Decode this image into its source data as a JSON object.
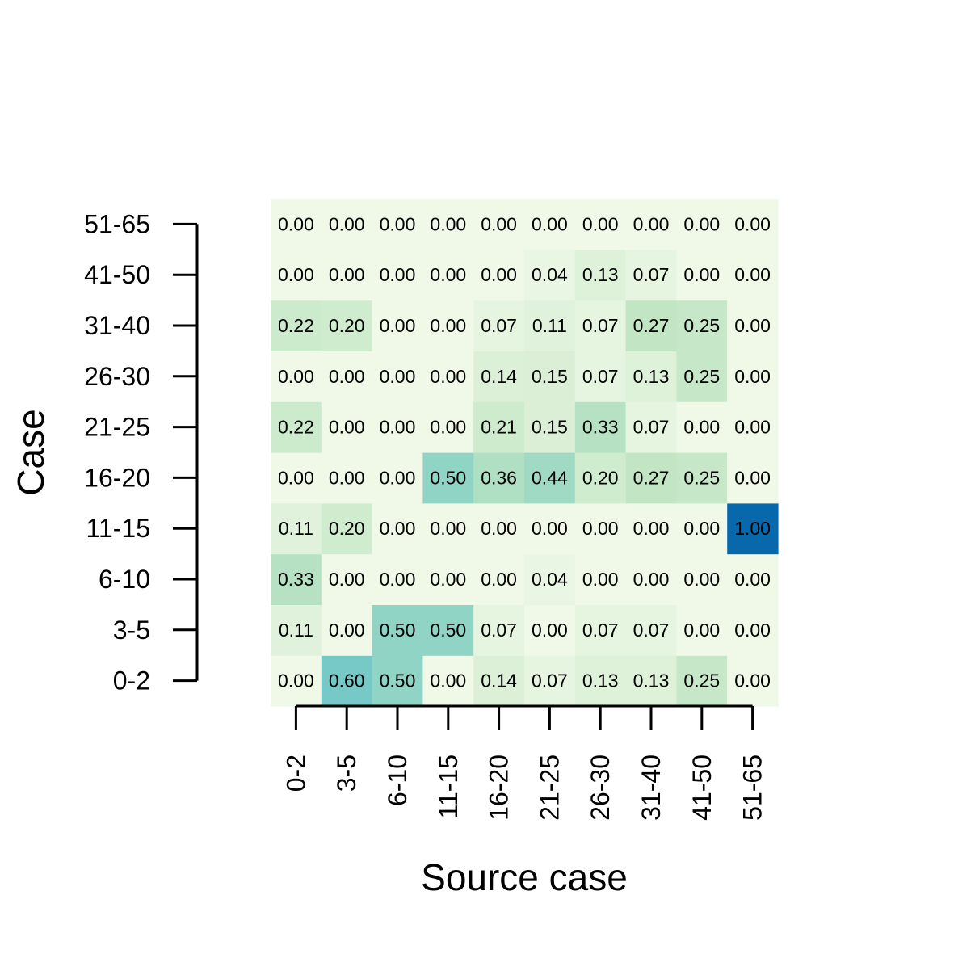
{
  "chart_data": {
    "type": "heatmap",
    "xlabel": "Source case",
    "ylabel": "Case",
    "x_categories": [
      "0-2",
      "3-5",
      "6-10",
      "11-15",
      "16-20",
      "21-25",
      "26-30",
      "31-40",
      "41-50",
      "51-65"
    ],
    "y_categories": [
      "0-2",
      "3-5",
      "6-10",
      "11-15",
      "16-20",
      "21-25",
      "26-30",
      "31-40",
      "41-50",
      "51-65"
    ],
    "value_range": [
      0,
      1
    ],
    "color_scale": {
      "low": "#f0f9e8",
      "stops": [
        "#f0f9e8",
        "#dcf0d8",
        "#bfe5c2",
        "#a3dbc5",
        "#7bccc4",
        "#63bdcc",
        "#43a2ca",
        "#0868ac"
      ],
      "high": "#0868ac"
    },
    "values": [
      [
        "0.00",
        "0.60",
        "0.50",
        "0.00",
        "0.14",
        "0.07",
        "0.13",
        "0.13",
        "0.25",
        "0.00"
      ],
      [
        "0.11",
        "0.00",
        "0.50",
        "0.50",
        "0.07",
        "0.00",
        "0.07",
        "0.07",
        "0.00",
        "0.00"
      ],
      [
        "0.33",
        "0.00",
        "0.00",
        "0.00",
        "0.00",
        "0.04",
        "0.00",
        "0.00",
        "0.00",
        "0.00"
      ],
      [
        "0.11",
        "0.20",
        "0.00",
        "0.00",
        "0.00",
        "0.00",
        "0.00",
        "0.00",
        "0.00",
        "1.00"
      ],
      [
        "0.00",
        "0.00",
        "0.00",
        "0.50",
        "0.36",
        "0.44",
        "0.20",
        "0.27",
        "0.25",
        "0.00"
      ],
      [
        "0.22",
        "0.00",
        "0.00",
        "0.00",
        "0.21",
        "0.15",
        "0.33",
        "0.07",
        "0.00",
        "0.00"
      ],
      [
        "0.00",
        "0.00",
        "0.00",
        "0.00",
        "0.14",
        "0.15",
        "0.07",
        "0.13",
        "0.25",
        "0.00"
      ],
      [
        "0.22",
        "0.20",
        "0.00",
        "0.00",
        "0.07",
        "0.11",
        "0.07",
        "0.27",
        "0.25",
        "0.00"
      ],
      [
        "0.00",
        "0.00",
        "0.00",
        "0.00",
        "0.00",
        "0.04",
        "0.13",
        "0.07",
        "0.00",
        "0.00"
      ],
      [
        "0.00",
        "0.00",
        "0.00",
        "0.00",
        "0.00",
        "0.00",
        "0.00",
        "0.00",
        "0.00",
        "0.00"
      ]
    ]
  }
}
